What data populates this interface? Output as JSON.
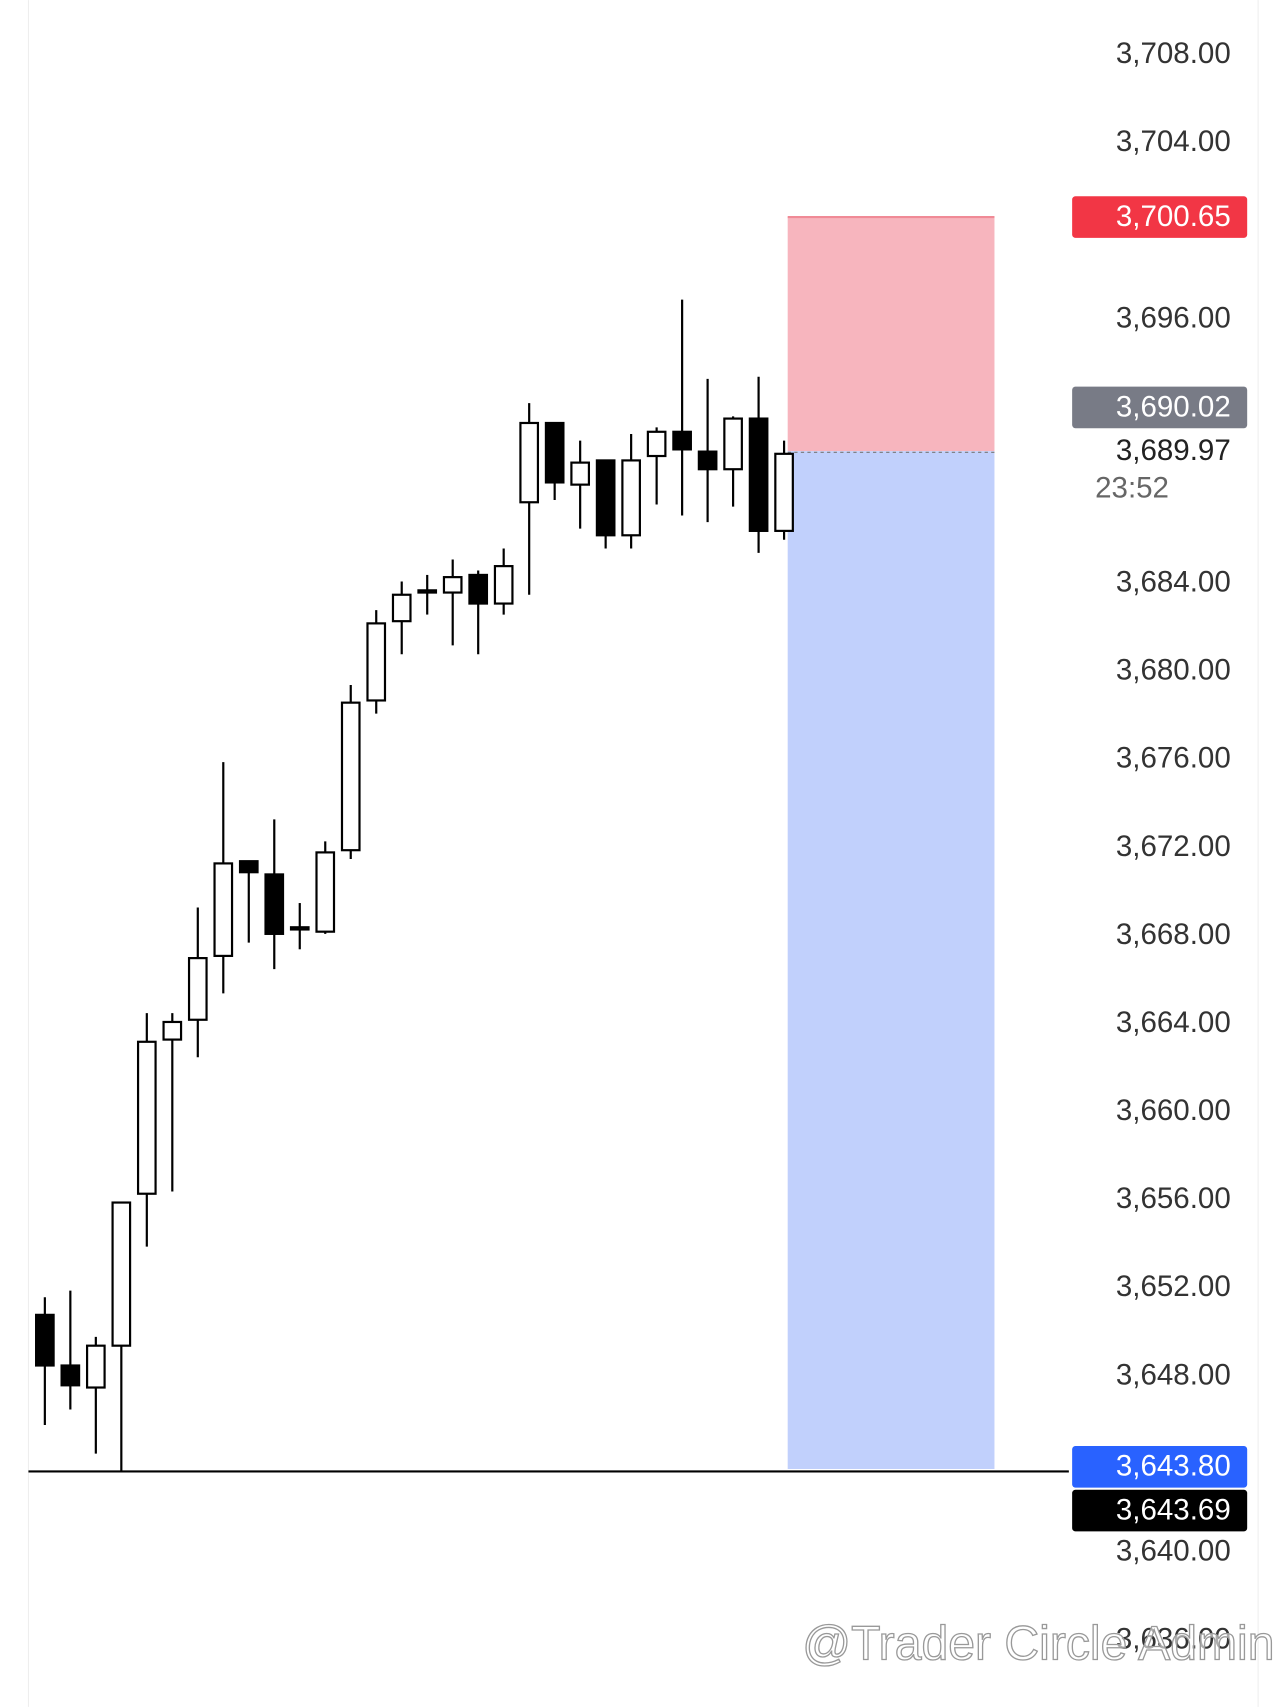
{
  "chart_data": {
    "type": "candlestick",
    "open": [
      3650.8,
      3648.5,
      3647.5,
      3649.4,
      3656.3,
      3663.3,
      3664.2,
      3667.1,
      3671.4,
      3670.8,
      3668.3,
      3668.2,
      3671.9,
      3678.7,
      3682.3,
      3683.6,
      3683.6,
      3684.4,
      3683.1,
      3687.7,
      3691.3,
      3688.5,
      3689.6,
      3686.2,
      3689.8,
      3690.9,
      3690.0,
      3689.2,
      3691.5,
      3686.4
    ],
    "high": [
      3651.6,
      3651.9,
      3649.8,
      3655.9,
      3664.5,
      3664.5,
      3669.3,
      3675.9,
      3671.4,
      3673.3,
      3669.5,
      3672.3,
      3679.4,
      3682.8,
      3684.1,
      3684.4,
      3685.1,
      3684.6,
      3685.6,
      3692.2,
      3691.3,
      3690.5,
      3689.6,
      3690.8,
      3691.1,
      3696.9,
      3693.3,
      3691.6,
      3693.4,
      3690.5
    ],
    "low": [
      3645.8,
      3646.5,
      3644.5,
      3643.7,
      3653.9,
      3656.4,
      3662.5,
      3665.4,
      3667.7,
      3666.5,
      3667.4,
      3668.1,
      3671.5,
      3678.1,
      3680.8,
      3682.6,
      3681.2,
      3680.8,
      3682.6,
      3683.5,
      3687.8,
      3686.5,
      3685.6,
      3685.6,
      3687.6,
      3687.1,
      3686.8,
      3687.5,
      3685.4,
      3686.0
    ],
    "close": [
      3648.5,
      3647.6,
      3649.4,
      3655.9,
      3663.2,
      3664.1,
      3667.0,
      3671.3,
      3670.9,
      3668.1,
      3668.4,
      3671.8,
      3678.6,
      3682.2,
      3683.5,
      3683.7,
      3684.3,
      3683.1,
      3684.8,
      3691.3,
      3688.6,
      3689.5,
      3686.2,
      3689.6,
      3690.9,
      3690.1,
      3689.2,
      3691.5,
      3686.4,
      3689.9
    ],
    "up_color": "#ffffff",
    "down_color": "#000000",
    "ylim": [
      3633,
      3710.5
    ],
    "yticks": [
      {
        "value": 3636,
        "label": "3,636.00"
      },
      {
        "value": 3640,
        "label": "3,640.00"
      },
      {
        "value": 3648,
        "label": "3,648.00"
      },
      {
        "value": 3652,
        "label": "3,652.00"
      },
      {
        "value": 3656,
        "label": "3,656.00"
      },
      {
        "value": 3660,
        "label": "3,660.00"
      },
      {
        "value": 3664,
        "label": "3,664.00"
      },
      {
        "value": 3668,
        "label": "3,668.00"
      },
      {
        "value": 3672,
        "label": "3,672.00"
      },
      {
        "value": 3676,
        "label": "3,676.00"
      },
      {
        "value": 3680,
        "label": "3,680.00"
      },
      {
        "value": 3684,
        "label": "3,684.00"
      },
      {
        "value": 3696,
        "label": "3,696.00"
      },
      {
        "value": 3704,
        "label": "3,704.00"
      },
      {
        "value": 3708,
        "label": "3,708.00"
      }
    ],
    "position": {
      "stop": 3700.65,
      "entry": 3690.02,
      "target": 3643.8,
      "stop_color": "#f7b5be",
      "target_color": "#c1d0fc"
    },
    "horizontal_line": 3643.69,
    "price_labels": [
      {
        "value": 3700.65,
        "label": "3,700.65",
        "color": "#f23645"
      },
      {
        "value": 3690.02,
        "label": "3,690.02",
        "color": "#787b86"
      },
      {
        "value": 3643.8,
        "label": "3,643.80",
        "color": "#2962ff"
      },
      {
        "value": 3643.69,
        "label": "3,643.69",
        "color": "#000000"
      }
    ],
    "last_price": {
      "value": 3689.97,
      "label": "3,689.97"
    },
    "countdown": "23:52",
    "watermark": "@Trader Circle Admin"
  }
}
